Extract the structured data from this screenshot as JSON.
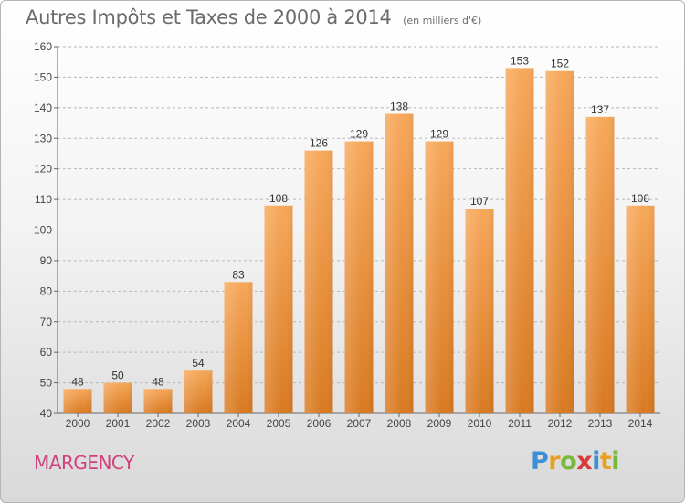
{
  "header": {
    "title": "Autres Impôts et Taxes de 2000 à 2014",
    "subtitle": "(en milliers d'€)"
  },
  "footer": {
    "city": "MARGENCY",
    "brand_letters": [
      "P",
      "r",
      "o",
      "x",
      "i",
      "t",
      "i"
    ],
    "brand_colors": [
      "#3d8fd6",
      "#e8a020",
      "#78b83c",
      "#d83a3a",
      "#3d8fd6",
      "#e8a020",
      "#78b83c"
    ]
  },
  "colors": {
    "bar_top": "#f7a85a",
    "bar_bottom": "#d97a22",
    "city": "#d0407c",
    "axis_text": "#444444",
    "grid": "#b8b8b8"
  },
  "chart_data": {
    "type": "bar",
    "title": "Autres Impôts et Taxes de 2000 à 2014",
    "subtitle": "(en milliers d'€)",
    "categories": [
      "2000",
      "2001",
      "2002",
      "2003",
      "2004",
      "2005",
      "2006",
      "2007",
      "2008",
      "2009",
      "2010",
      "2011",
      "2012",
      "2013",
      "2014"
    ],
    "values": [
      48,
      50,
      48,
      54,
      83,
      108,
      126,
      129,
      138,
      129,
      107,
      153,
      152,
      137,
      108
    ],
    "ylim": [
      40,
      160
    ],
    "yticks": [
      40,
      50,
      60,
      70,
      80,
      90,
      100,
      110,
      120,
      130,
      140,
      150,
      160
    ],
    "grid": true,
    "data_labels": true
  }
}
